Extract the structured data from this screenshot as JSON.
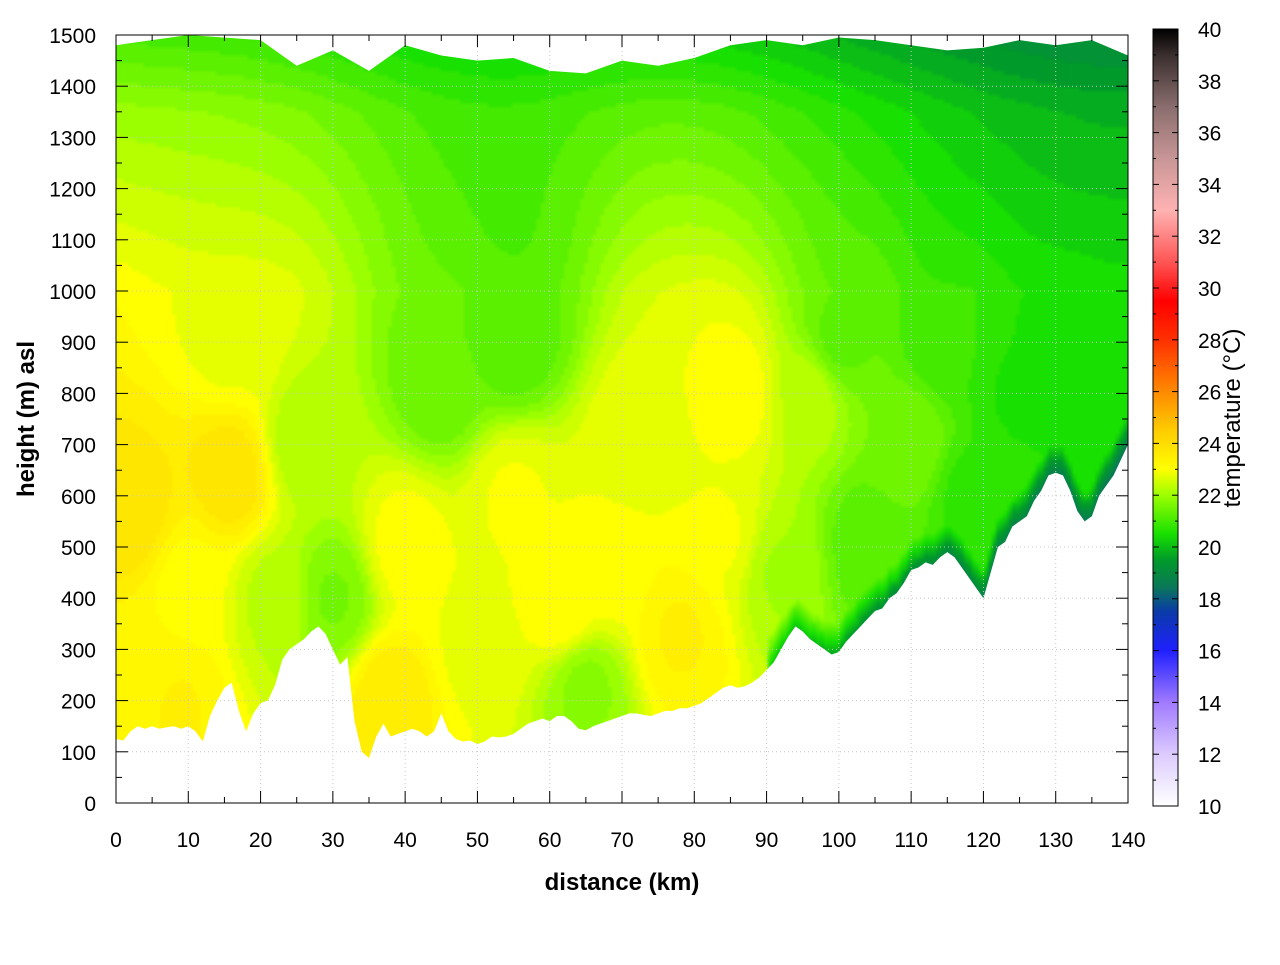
{
  "chart_data": {
    "type": "heatmap",
    "subtype": "vertical cross-section, filled contours",
    "xlabel": "distance (km)",
    "ylabel": "height (m) asl",
    "colorbar_label": "temperature (°C)",
    "xlim": [
      0,
      140
    ],
    "ylim": [
      0,
      1500
    ],
    "x_ticks": [
      "0",
      "10",
      "20",
      "30",
      "40",
      "50",
      "60",
      "70",
      "80",
      "90",
      "100",
      "110",
      "120",
      "130",
      "140"
    ],
    "y_ticks": [
      "0",
      "100",
      "200",
      "300",
      "400",
      "500",
      "600",
      "700",
      "800",
      "900",
      "1000",
      "1100",
      "1200",
      "1300",
      "1400",
      "1500"
    ],
    "colorbar": {
      "range": [
        10,
        40
      ],
      "ticks": [
        "10",
        "12",
        "14",
        "16",
        "18",
        "20",
        "22",
        "24",
        "26",
        "28",
        "30",
        "32",
        "34",
        "36",
        "38",
        "40"
      ],
      "stops": [
        {
          "value": 10,
          "color": "#ffffff"
        },
        {
          "value": 12,
          "color": "#dccbff"
        },
        {
          "value": 14,
          "color": "#a07aff"
        },
        {
          "value": 16,
          "color": "#2020ff"
        },
        {
          "value": 17.5,
          "color": "#0a3aa8"
        },
        {
          "value": 18.5,
          "color": "#0a7a55"
        },
        {
          "value": 19.5,
          "color": "#009a2a"
        },
        {
          "value": 20.5,
          "color": "#18e000"
        },
        {
          "value": 22,
          "color": "#9cff00"
        },
        {
          "value": 23,
          "color": "#ffff00"
        },
        {
          "value": 24.5,
          "color": "#ffcc00"
        },
        {
          "value": 26,
          "color": "#ff8a00"
        },
        {
          "value": 28,
          "color": "#ff3000"
        },
        {
          "value": 29.5,
          "color": "#ff0000"
        },
        {
          "value": 31,
          "color": "#ff5555"
        },
        {
          "value": 33,
          "color": "#ffb2b2"
        },
        {
          "value": 35,
          "color": "#c89696"
        },
        {
          "value": 37,
          "color": "#8a6d6d"
        },
        {
          "value": 39,
          "color": "#3a2e2e"
        },
        {
          "value": 40,
          "color": "#000000"
        }
      ]
    },
    "terrain_profile": {
      "x": [
        0,
        1,
        2,
        3,
        4,
        5,
        6,
        7,
        8,
        9,
        10,
        11,
        12,
        13,
        14,
        15,
        16,
        17,
        18,
        19,
        20,
        21,
        22,
        23,
        24,
        25,
        26,
        27,
        28,
        29,
        30,
        31,
        32,
        33,
        34,
        35,
        36,
        37,
        38,
        39,
        40,
        41,
        42,
        43,
        44,
        45,
        46,
        47,
        48,
        49,
        50,
        51,
        52,
        53,
        54,
        55,
        56,
        57,
        58,
        59,
        60,
        61,
        62,
        63,
        64,
        65,
        66,
        67,
        68,
        69,
        70,
        71,
        72,
        73,
        74,
        75,
        76,
        77,
        78,
        79,
        80,
        81,
        82,
        83,
        84,
        85,
        86,
        87,
        88,
        89,
        90,
        91,
        92,
        93,
        94,
        95,
        96,
        97,
        98,
        99,
        100,
        101,
        102,
        103,
        104,
        105,
        106,
        107,
        108,
        109,
        110,
        111,
        112,
        113,
        114,
        115,
        116,
        117,
        118,
        119,
        120,
        121,
        122,
        123,
        124,
        125,
        126,
        127,
        128,
        129,
        130,
        131,
        132,
        133,
        134,
        135,
        136,
        137,
        138,
        139,
        140
      ],
      "height": [
        125,
        122,
        140,
        150,
        145,
        150,
        145,
        148,
        150,
        145,
        150,
        140,
        120,
        170,
        200,
        225,
        235,
        180,
        140,
        175,
        195,
        200,
        230,
        280,
        300,
        310,
        320,
        335,
        345,
        330,
        300,
        270,
        285,
        160,
        100,
        88,
        130,
        155,
        130,
        135,
        140,
        145,
        140,
        130,
        140,
        175,
        140,
        125,
        120,
        122,
        115,
        120,
        130,
        128,
        130,
        135,
        145,
        155,
        160,
        165,
        160,
        170,
        170,
        160,
        145,
        142,
        150,
        155,
        160,
        165,
        170,
        175,
        175,
        172,
        170,
        175,
        180,
        180,
        185,
        185,
        190,
        195,
        205,
        215,
        225,
        230,
        225,
        228,
        235,
        245,
        260,
        275,
        300,
        325,
        345,
        335,
        320,
        310,
        300,
        290,
        295,
        315,
        330,
        345,
        360,
        375,
        380,
        400,
        410,
        430,
        455,
        460,
        470,
        465,
        480,
        490,
        480,
        460,
        440,
        420,
        400,
        450,
        500,
        510,
        540,
        550,
        560,
        590,
        610,
        640,
        645,
        640,
        610,
        570,
        550,
        560,
        600,
        620,
        640,
        670,
        700
      ]
    },
    "top_edge": {
      "x": [
        0,
        10,
        20,
        25,
        30,
        35,
        40,
        45,
        50,
        55,
        60,
        65,
        70,
        75,
        80,
        85,
        90,
        95,
        100,
        105,
        110,
        115,
        120,
        125,
        130,
        135,
        140
      ],
      "height": [
        1480,
        1500,
        1490,
        1440,
        1470,
        1430,
        1480,
        1460,
        1450,
        1455,
        1430,
        1425,
        1450,
        1440,
        1455,
        1480,
        1490,
        1480,
        1495,
        1490,
        1480,
        1470,
        1475,
        1490,
        1480,
        1490,
        1460
      ]
    },
    "temperature_field_nodes": [
      {
        "x": 2,
        "h": 560,
        "t": 23.8
      },
      {
        "x": 4,
        "h": 250,
        "t": 23.2
      },
      {
        "x": 8,
        "h": 190,
        "t": 23.4
      },
      {
        "x": 10,
        "h": 420,
        "t": 23.0
      },
      {
        "x": 16,
        "h": 640,
        "t": 23.8
      },
      {
        "x": 16,
        "h": 900,
        "t": 22.8
      },
      {
        "x": 22,
        "h": 400,
        "t": 22.3
      },
      {
        "x": 26,
        "h": 700,
        "t": 22.2
      },
      {
        "x": 30,
        "h": 400,
        "t": 21.6
      },
      {
        "x": 38,
        "h": 200,
        "t": 23.6
      },
      {
        "x": 40,
        "h": 500,
        "t": 23.0
      },
      {
        "x": 45,
        "h": 820,
        "t": 21.4
      },
      {
        "x": 50,
        "h": 300,
        "t": 22.8
      },
      {
        "x": 55,
        "h": 600,
        "t": 22.9
      },
      {
        "x": 55,
        "h": 900,
        "t": 21.2
      },
      {
        "x": 62,
        "h": 380,
        "t": 23.1
      },
      {
        "x": 65,
        "h": 230,
        "t": 21.8
      },
      {
        "x": 68,
        "h": 450,
        "t": 23.0
      },
      {
        "x": 72,
        "h": 700,
        "t": 22.8
      },
      {
        "x": 78,
        "h": 330,
        "t": 23.4
      },
      {
        "x": 84,
        "h": 520,
        "t": 22.9
      },
      {
        "x": 86,
        "h": 800,
        "t": 23.0
      },
      {
        "x": 92,
        "h": 450,
        "t": 22.1
      },
      {
        "x": 96,
        "h": 800,
        "t": 22.3
      },
      {
        "x": 100,
        "h": 900,
        "t": 21.3
      },
      {
        "x": 104,
        "h": 500,
        "t": 21.2
      },
      {
        "x": 110,
        "h": 700,
        "t": 21.6
      },
      {
        "x": 115,
        "h": 900,
        "t": 20.9
      },
      {
        "x": 118,
        "h": 600,
        "t": 20.8
      },
      {
        "x": 125,
        "h": 800,
        "t": 20.6
      },
      {
        "x": 130,
        "h": 900,
        "t": 20.6
      },
      {
        "x": 135,
        "h": 850,
        "t": 20.4
      }
    ]
  }
}
